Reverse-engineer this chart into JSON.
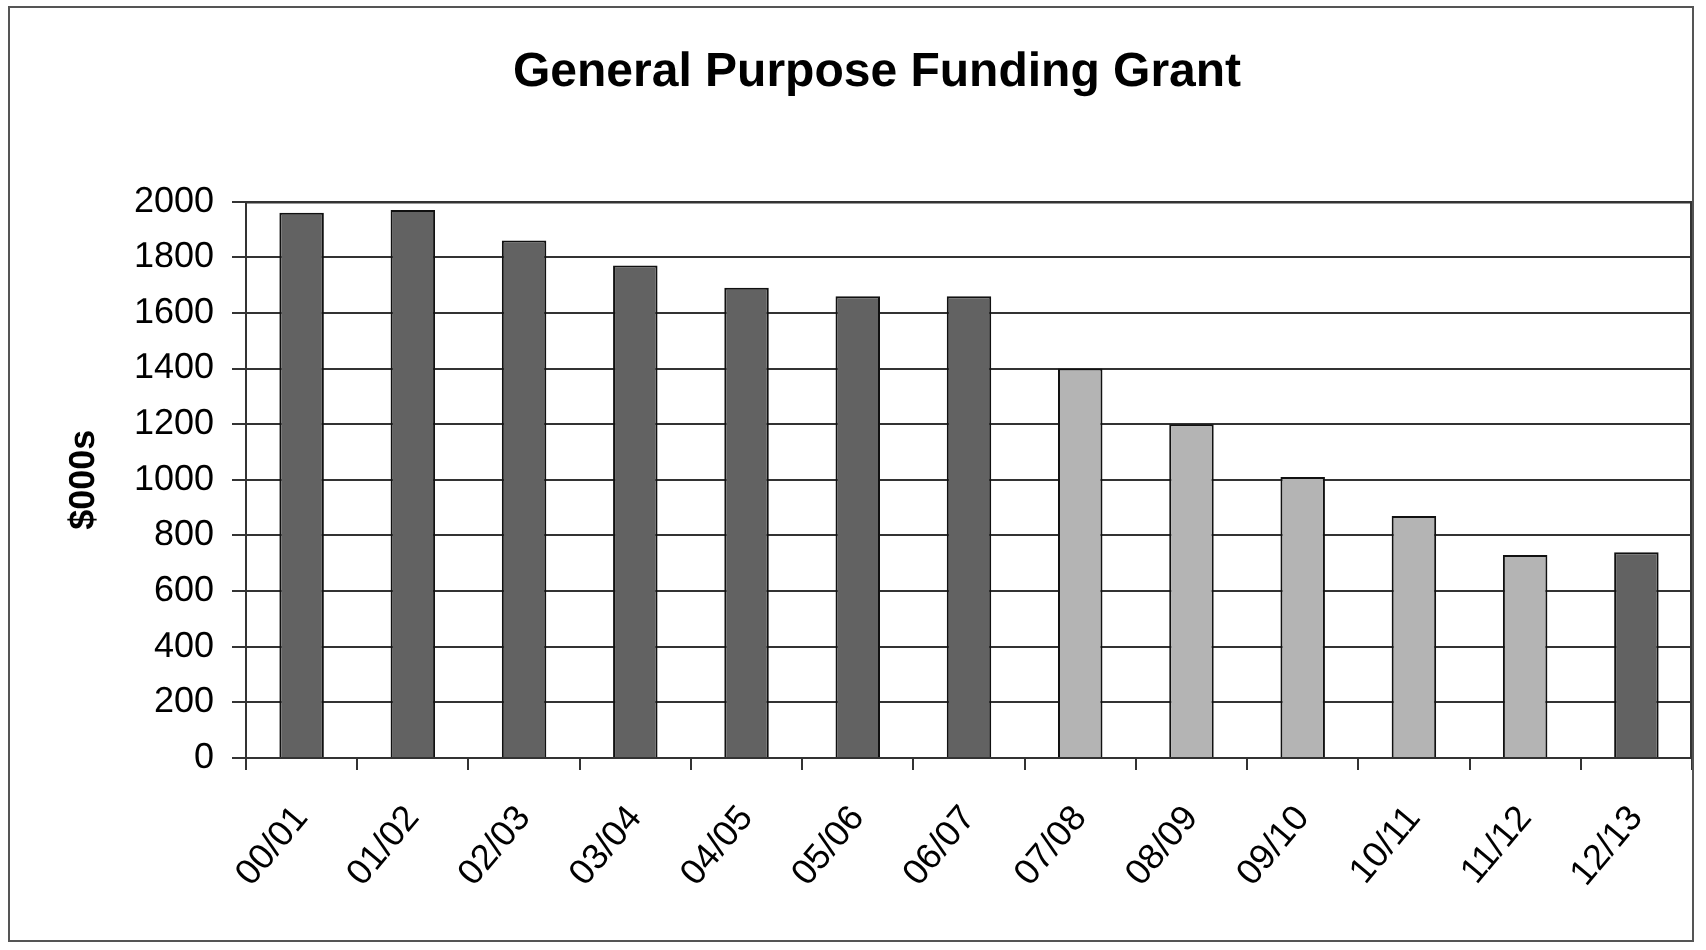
{
  "chart_data": {
    "type": "bar",
    "title": "General Purpose Funding Grant",
    "ylabel": "$000s",
    "categories": [
      "00/01",
      "01/02",
      "02/03",
      "03/04",
      "04/05",
      "05/06",
      "06/07",
      "07/08",
      "08/09",
      "09/10",
      "10/11",
      "11/12",
      "12/13"
    ],
    "values": [
      1960,
      1970,
      1860,
      1770,
      1690,
      1660,
      1660,
      1400,
      1200,
      1010,
      870,
      730,
      740
    ],
    "colors": [
      "#626262",
      "#626262",
      "#626262",
      "#626262",
      "#626262",
      "#626262",
      "#626262",
      "#b4b4b4",
      "#b4b4b4",
      "#b4b4b4",
      "#b4b4b4",
      "#b4b4b4",
      "#626262"
    ],
    "ylim": [
      0,
      2000
    ],
    "yticks": [
      0,
      200,
      400,
      600,
      800,
      1000,
      1200,
      1400,
      1600,
      1800,
      2000
    ],
    "grid": "y",
    "legend": false
  }
}
